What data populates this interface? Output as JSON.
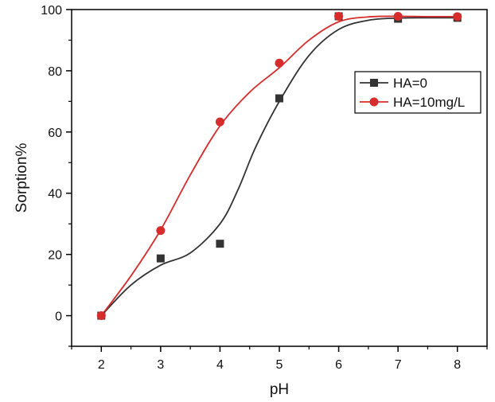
{
  "chart_data": {
    "type": "scatter",
    "title": "",
    "xlabel": "pH",
    "ylabel": "Sorption%",
    "xlim": [
      1.5,
      8.5
    ],
    "ylim": [
      -10,
      100
    ],
    "xticks": [
      2,
      3,
      4,
      5,
      6,
      7,
      8
    ],
    "yticks": [
      0,
      20,
      40,
      60,
      80,
      100
    ],
    "grid": false,
    "legend_position": "right",
    "series": [
      {
        "name": "HA=0",
        "color": "#333333",
        "marker": "square",
        "x": [
          2,
          3,
          4,
          5,
          6,
          7,
          8
        ],
        "y": [
          0,
          18.7,
          23.5,
          71,
          97.8,
          97,
          97.3
        ],
        "fit_curve": {
          "x": [
            2,
            2.5,
            3,
            3.5,
            4,
            4.3,
            4.6,
            5,
            5.5,
            6,
            6.5,
            7,
            7.5,
            8
          ],
          "y": [
            0,
            10,
            16.5,
            20.5,
            30,
            41,
            55,
            70,
            85,
            93.5,
            96.5,
            97.2,
            97.3,
            97.3
          ]
        }
      },
      {
        "name": "HA=10mg/L",
        "color": "#d62c2c",
        "marker": "circle",
        "x": [
          2,
          3,
          4,
          5,
          6,
          7,
          8
        ],
        "y": [
          0,
          27.8,
          63.3,
          82.5,
          97.8,
          97.8,
          97.7
        ],
        "fit_curve": {
          "x": [
            2,
            2.5,
            3,
            3.5,
            4,
            4.5,
            5,
            5.5,
            6,
            6.5,
            7,
            7.5,
            8
          ],
          "y": [
            0,
            13,
            28,
            46,
            62,
            73,
            81,
            90,
            96,
            97.6,
            97.8,
            97.7,
            97.7
          ]
        }
      }
    ]
  }
}
